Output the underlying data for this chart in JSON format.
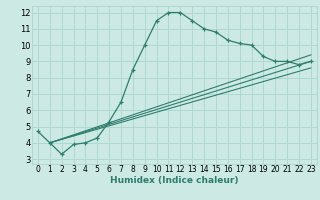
{
  "xlabel": "Humidex (Indice chaleur)",
  "bg_color": "#cce9e4",
  "grid_color": "#b0d8d2",
  "line_color": "#2e7d6e",
  "xlim": [
    -0.5,
    23.5
  ],
  "ylim": [
    2.7,
    12.4
  ],
  "xticks": [
    0,
    1,
    2,
    3,
    4,
    5,
    6,
    7,
    8,
    9,
    10,
    11,
    12,
    13,
    14,
    15,
    16,
    17,
    18,
    19,
    20,
    21,
    22,
    23
  ],
  "yticks": [
    3,
    4,
    5,
    6,
    7,
    8,
    9,
    10,
    11,
    12
  ],
  "main_curve_x": [
    0,
    1,
    2,
    3,
    4,
    5,
    6,
    7,
    8,
    9,
    10,
    11,
    12,
    13,
    14,
    15,
    16,
    17,
    18,
    19,
    20,
    21,
    22,
    23
  ],
  "main_curve_y": [
    4.7,
    4.0,
    3.3,
    3.9,
    4.0,
    4.3,
    5.3,
    6.5,
    8.5,
    10.0,
    11.5,
    12.0,
    12.0,
    11.5,
    11.0,
    10.8,
    10.3,
    10.1,
    10.0,
    9.3,
    9.0,
    9.0,
    8.8,
    9.0
  ],
  "line1_x": [
    1,
    23
  ],
  "line1_y": [
    4.0,
    8.6
  ],
  "line2_x": [
    1,
    23
  ],
  "line2_y": [
    4.0,
    9.0
  ],
  "line3_x": [
    1,
    23
  ],
  "line3_y": [
    4.0,
    9.4
  ]
}
